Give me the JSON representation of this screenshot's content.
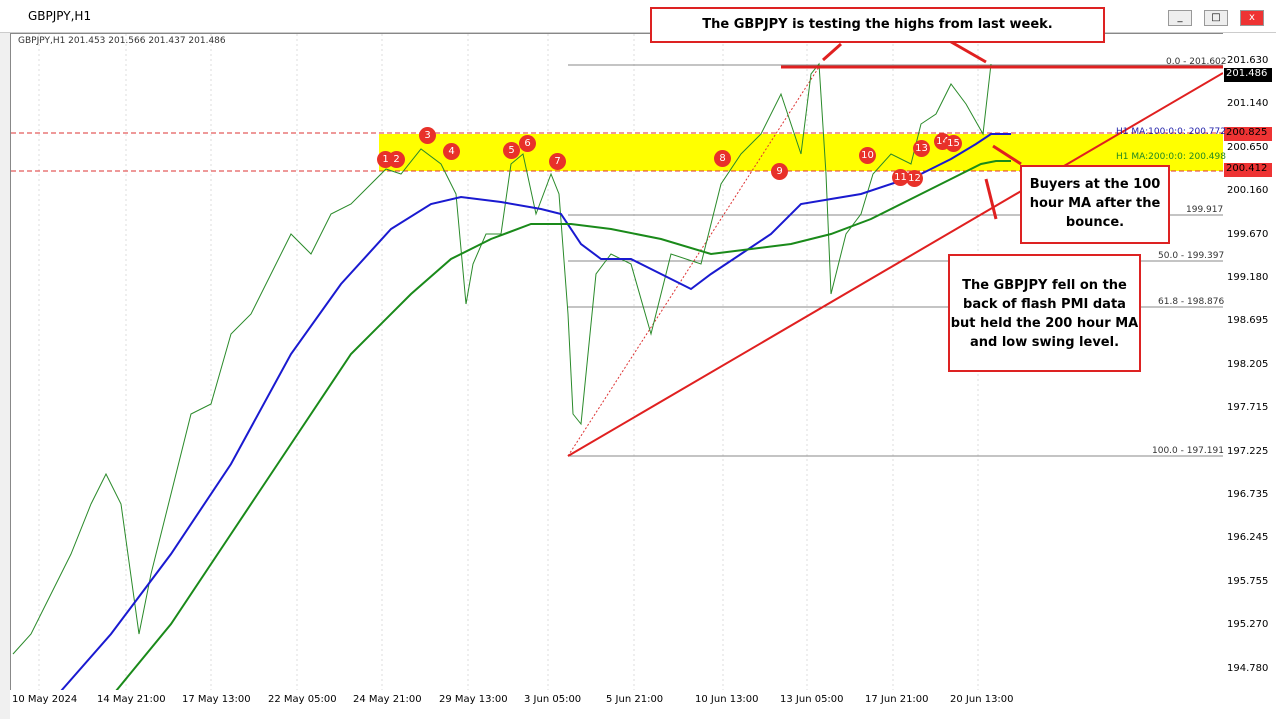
{
  "window": {
    "title": "GBPJPY,H1"
  },
  "chart": {
    "header": "GBPJPY,H1  201.453 201.566 201.437 201.486",
    "price_labels": [
      "201.630",
      "201.140",
      "200.650",
      "200.160",
      "199.670",
      "199.180",
      "198.695",
      "198.205",
      "197.715",
      "197.225",
      "196.735",
      "196.245",
      "195.755",
      "195.270",
      "194.780"
    ],
    "date_labels": [
      "10 May 2024",
      "14 May 21:00",
      "17 May 13:00",
      "22 May 05:00",
      "24 May 21:00",
      "29 May 13:00",
      "3 Jun 05:00",
      "5 Jun 21:00",
      "10 Jun 13:00",
      "13 Jun 05:00",
      "17 Jun 21:00",
      "20 Jun 13:00"
    ],
    "current_price": "201.486",
    "level_high": "200.825",
    "level_low": "200.412",
    "fib_labels": [
      "0.0 - 201.602",
      "199.917",
      "50.0 - 199.397",
      "61.8 - 198.876",
      "100.0 - 197.191"
    ],
    "ma_labels": [
      "H1 MA:100:0:0: 200.772",
      "H1 MA:200:0:0: 200.498"
    ],
    "markers": [
      "1",
      "2",
      "3",
      "4",
      "5",
      "6",
      "7",
      "8",
      "9",
      "10",
      "11",
      "12",
      "13",
      "14",
      "15"
    ]
  },
  "annotations": [
    {
      "lines": [
        "The GBPJPY is testing the highs from last week."
      ]
    },
    {
      "lines": [
        "Buyers at the 100",
        "hour MA after the",
        "bounce."
      ]
    },
    {
      "lines": [
        "The GBPJPY fell on the",
        "back of flash PMI data",
        "but held the 200 hour MA",
        "and low swing level."
      ]
    }
  ]
}
